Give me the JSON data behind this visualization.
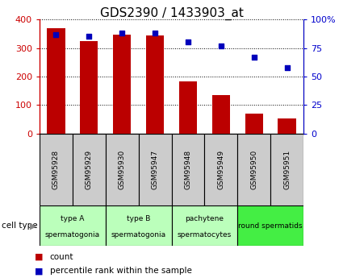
{
  "title": "GDS2390 / 1433903_at",
  "samples": [
    "GSM95928",
    "GSM95929",
    "GSM95930",
    "GSM95947",
    "GSM95948",
    "GSM95949",
    "GSM95950",
    "GSM95951"
  ],
  "counts": [
    370,
    323,
    348,
    345,
    183,
    135,
    70,
    52
  ],
  "percentile_ranks": [
    87,
    85,
    88,
    88,
    80,
    77,
    67,
    58
  ],
  "cell_types": [
    {
      "label": "type A\nspermatogonia",
      "start": 0,
      "end": 2,
      "color": "#bbffbb"
    },
    {
      "label": "type B\nspermatogonia",
      "start": 2,
      "end": 4,
      "color": "#bbffbb"
    },
    {
      "label": "pachytene\nspermatocytes",
      "start": 4,
      "end": 6,
      "color": "#bbffbb"
    },
    {
      "label": "round spermatids",
      "start": 6,
      "end": 8,
      "color": "#44ee44"
    }
  ],
  "bar_color": "#bb0000",
  "dot_color": "#0000bb",
  "left_ylim": [
    0,
    400
  ],
  "right_ylim": [
    0,
    100
  ],
  "left_yticks": [
    0,
    100,
    200,
    300,
    400
  ],
  "right_yticks": [
    0,
    25,
    50,
    75,
    100
  ],
  "right_yticklabels": [
    "0",
    "25",
    "50",
    "75",
    "100%"
  ],
  "grid_color": "#000000",
  "background_color": "#ffffff",
  "bar_width": 0.55,
  "title_fontsize": 11,
  "tick_label_color_left": "#cc0000",
  "tick_label_color_right": "#0000cc",
  "sample_box_color": "#cccccc",
  "legend_square_size": 8
}
